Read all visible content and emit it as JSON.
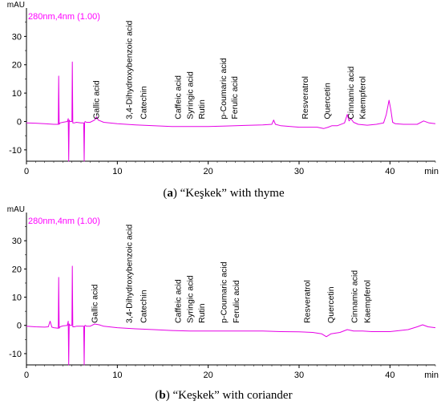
{
  "chart_data": [
    {
      "type": "line",
      "panel_label": "a",
      "caption": "“Keşkek” with thyme",
      "method_label": "280nm,4nm (1.00)",
      "ylabel": "mAU",
      "xunit": "min",
      "xlim": [
        0,
        45
      ],
      "ylim": [
        -14,
        40
      ],
      "x_ticks": [
        0,
        10,
        20,
        30,
        40
      ],
      "y_ticks": [
        -10,
        0,
        10,
        20,
        30
      ],
      "line_color": "#e600e6",
      "peak_labels": [
        {
          "text": "Gallic acid",
          "x": 8.0
        },
        {
          "text": "3,4-Dihydroxybenzoic acid",
          "x": 11.6
        },
        {
          "text": "Catechin",
          "x": 13.2
        },
        {
          "text": "Caffeic acid",
          "x": 17.0
        },
        {
          "text": "Syringic acid",
          "x": 18.3
        },
        {
          "text": "Rutin",
          "x": 19.6
        },
        {
          "text": "p-Coumaric acid",
          "x": 22.0
        },
        {
          "text": "Ferulic acid",
          "x": 23.2
        },
        {
          "text": "Resveratrol",
          "x": 31.0
        },
        {
          "text": "Quercetin",
          "x": 33.4
        },
        {
          "text": "Cinnamic acid",
          "x": 36.0
        },
        {
          "text": "Kaempferol",
          "x": 37.3
        }
      ],
      "series": [
        {
          "x": [
            0,
            1,
            2,
            3,
            3.5,
            3.55,
            3.6,
            3.7,
            4.0,
            4.5,
            4.6,
            4.65,
            4.7,
            4.8,
            5.0,
            5.05,
            5.1,
            5.25,
            5.5,
            6.0,
            6.3,
            6.35,
            6.4,
            6.45,
            6.6,
            7.0,
            7.5,
            7.7,
            7.9,
            8.5,
            10,
            12,
            14,
            16,
            18,
            20,
            22,
            24,
            26,
            27.0,
            27.2,
            27.4,
            28,
            30,
            31,
            32,
            32.7,
            33.2,
            33.6,
            34.2,
            35.0,
            35.3,
            35.5,
            35.7,
            36.0,
            36.5,
            37.5,
            38.5,
            39.3,
            39.6,
            39.9,
            40.1,
            40.3,
            40.6,
            41.5,
            43.0,
            43.7,
            44.3,
            45
          ],
          "y": [
            -0.5,
            -0.6,
            -0.8,
            -1.0,
            -1.0,
            16.0,
            -1.0,
            -0.5,
            -0.3,
            0,
            1.0,
            -14,
            0.5,
            0,
            0,
            21.0,
            -0.5,
            -0.5,
            -0.3,
            -0.5,
            -0.5,
            -14,
            -0.5,
            0,
            -0.3,
            -0.3,
            0.5,
            1.6,
            0.5,
            -0.3,
            -0.8,
            -1.2,
            -1.5,
            -1.8,
            -1.8,
            -1.8,
            -1.6,
            -1.4,
            -1.2,
            -1.0,
            0.5,
            -1.0,
            -1.5,
            -2.0,
            -2.0,
            -2.0,
            -2.5,
            -2.0,
            -1.5,
            -1.5,
            -0.5,
            2.5,
            0.2,
            1.0,
            -0.3,
            -1.0,
            -1.3,
            -1.0,
            -0.5,
            2.5,
            7.5,
            4.0,
            -0.3,
            -0.8,
            -1.0,
            -1.0,
            0.2,
            -0.5,
            -0.8
          ]
        }
      ]
    },
    {
      "type": "line",
      "panel_label": "b",
      "caption": "“Keşkek” with coriander",
      "method_label": "280nm,4nm (1.00)",
      "ylabel": "mAU",
      "xunit": "min",
      "xlim": [
        0,
        45
      ],
      "ylim": [
        -14,
        40
      ],
      "x_ticks": [
        0,
        10,
        20,
        30,
        40
      ],
      "y_ticks": [
        -10,
        0,
        10,
        20,
        30
      ],
      "line_color": "#e600e6",
      "peak_labels": [
        {
          "text": "Gallic acid",
          "x": 7.8
        },
        {
          "text": "3,4-Dihydroxybenzoic acid",
          "x": 11.6
        },
        {
          "text": "Catechin",
          "x": 13.2
        },
        {
          "text": "Caffeic acid",
          "x": 17.0
        },
        {
          "text": "Syringic acid",
          "x": 18.3
        },
        {
          "text": "Rutin",
          "x": 19.6
        },
        {
          "text": "p-Coumaric acid",
          "x": 22.0
        },
        {
          "text": "Ferulic acid",
          "x": 23.4
        },
        {
          "text": "Resveratrol",
          "x": 31.2
        },
        {
          "text": "Quercetin",
          "x": 33.8
        },
        {
          "text": "Cinnamic acid",
          "x": 36.4
        },
        {
          "text": "Kaempferol",
          "x": 37.8
        }
      ],
      "series": [
        {
          "x": [
            0,
            1,
            2,
            2.4,
            2.6,
            2.8,
            3,
            3.5,
            3.55,
            3.6,
            3.7,
            4.0,
            4.5,
            4.6,
            4.65,
            4.7,
            4.8,
            5.0,
            5.05,
            5.1,
            5.25,
            5.5,
            6.0,
            6.3,
            6.35,
            6.4,
            6.45,
            6.6,
            7.0,
            7.5,
            8.0,
            8.5,
            10,
            12,
            14,
            16,
            18,
            20,
            22,
            24,
            26,
            28,
            30,
            31.5,
            32.5,
            33.0,
            33.5,
            34.5,
            35.3,
            36.0,
            37,
            38,
            40,
            42,
            43.0,
            43.6,
            44.2,
            45
          ],
          "y": [
            -0.3,
            -0.5,
            -0.6,
            -0.5,
            1.5,
            -0.6,
            -0.8,
            -1.0,
            17.0,
            -1.0,
            -0.5,
            -0.2,
            0,
            1.5,
            -14,
            0.5,
            0,
            0,
            21.0,
            -0.5,
            -0.5,
            -0.3,
            -0.3,
            -0.3,
            -14,
            -0.3,
            0,
            -0.3,
            -0.3,
            0.5,
            0.2,
            -0.3,
            -0.8,
            -1.2,
            -1.5,
            -1.8,
            -2.0,
            -2.0,
            -2.0,
            -2.0,
            -2.0,
            -2.2,
            -2.3,
            -2.5,
            -3.0,
            -4.0,
            -3.0,
            -2.5,
            -1.5,
            -2.0,
            -2.0,
            -2.2,
            -2.2,
            -1.5,
            -0.5,
            0.2,
            -0.5,
            -0.8
          ]
        }
      ]
    }
  ]
}
